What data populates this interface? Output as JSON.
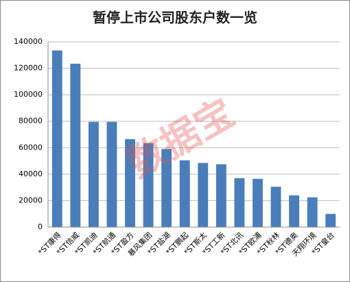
{
  "chart_data": {
    "type": "bar",
    "title": "暂停上市公司股东户数一览",
    "categories": [
      "*ST康得",
      "*ST信威",
      "*ST凯迪",
      "*ST航通",
      "*ST盈方",
      "暴风集团",
      "*ST盐湖",
      "*ST鹏起",
      "*ST斯太",
      "*ST工新",
      "*ST北讯",
      "*ST欧浦",
      "*ST秋林",
      "*ST德奥",
      "天翔环境",
      "*ST皇台"
    ],
    "values": [
      133500,
      123500,
      79500,
      79500,
      66500,
      63500,
      59000,
      50500,
      48500,
      47500,
      37000,
      36500,
      30500,
      24000,
      22500,
      10000
    ],
    "color": "#4a7ebb",
    "ylim": [
      0,
      140000
    ],
    "yticks": [
      0,
      20000,
      40000,
      60000,
      80000,
      100000,
      120000,
      140000
    ],
    "grid": true,
    "watermark": "数据宝"
  }
}
